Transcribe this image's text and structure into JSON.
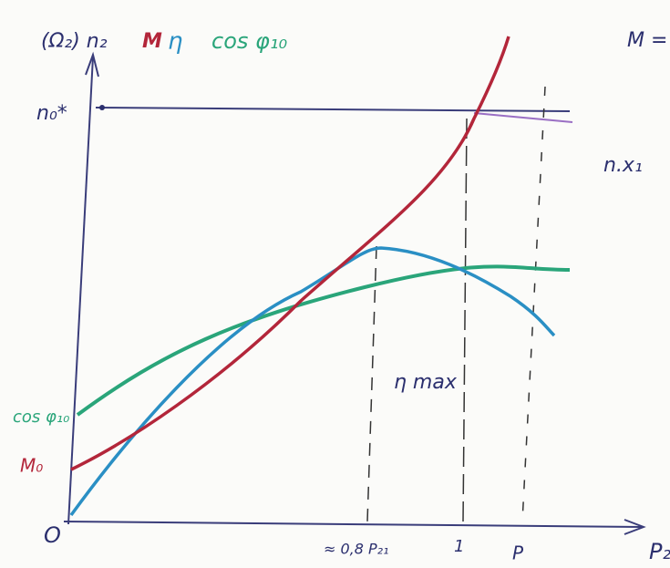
{
  "axes": {
    "y_label": "(Ω₂) n₂",
    "x_label": "P₂",
    "origin": "O"
  },
  "legend": {
    "torque": "M",
    "efficiency": "η",
    "power_factor": "cos φ₁₀"
  },
  "y_marks": {
    "speed": "n₀*",
    "power_factor": "cos φ₁₀",
    "torque": "M₀"
  },
  "x_marks": {
    "max_efficiency": "≈ 0,8 P₂₁",
    "rated": "1",
    "power": "P"
  },
  "annotations": {
    "efficiency_max": "η max",
    "note_top": "M =",
    "note_mid": "n.x₁"
  }
}
